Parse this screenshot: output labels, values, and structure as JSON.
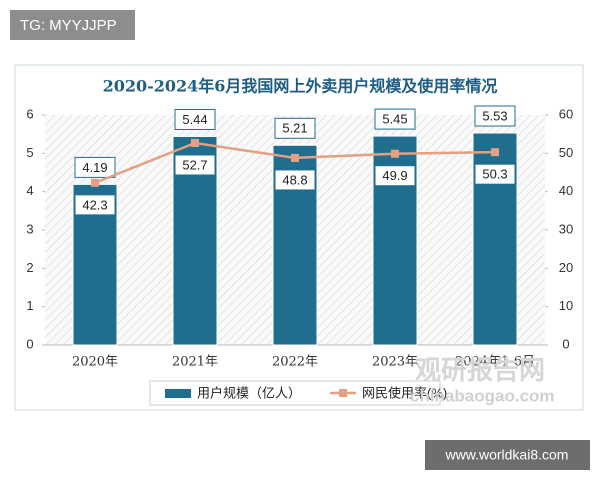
{
  "chart_data": {
    "type": "bar-line",
    "title": "2020-2024年6月我国网上外卖用户规模及使用率情况",
    "categories": [
      "2020年",
      "2021年",
      "2022年",
      "2023年",
      "2024年1-6月"
    ],
    "series": [
      {
        "name": "用户规模（亿人）",
        "type": "bar",
        "color": "#1f6e8e",
        "values": [
          4.19,
          5.44,
          5.21,
          5.45,
          5.53
        ]
      },
      {
        "name": "网民使用率(%)",
        "type": "line",
        "axis": "y2",
        "color": "#e3a083",
        "values": [
          42.3,
          52.7,
          48.8,
          49.9,
          50.3
        ]
      }
    ],
    "ylim": [
      0,
      6
    ],
    "yticks": [
      0,
      1,
      2,
      3,
      4,
      5,
      6
    ],
    "y2lim": [
      0,
      60
    ],
    "y2ticks": [
      0,
      10,
      20,
      30,
      40,
      50,
      60
    ]
  },
  "watermarks": {
    "top_left": "TG: MYYJJPP",
    "bottom_right": "www.worldkai8.com",
    "brand": "观研报告网",
    "brand_url": "chinabaogao.com"
  }
}
